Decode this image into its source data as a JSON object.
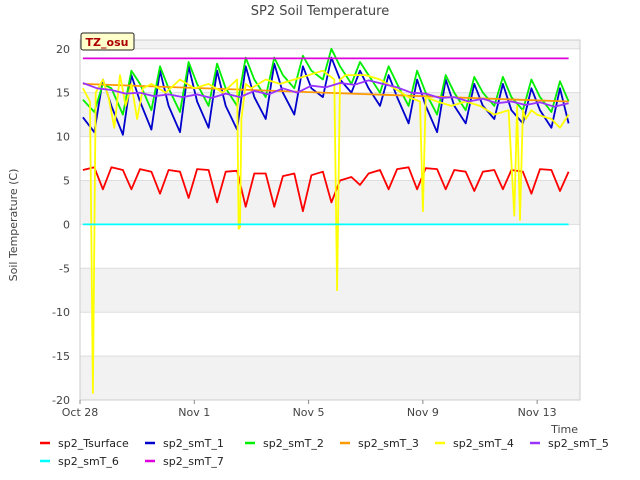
{
  "chart_data": {
    "type": "line",
    "title": "SP2 Soil Temperature",
    "xlabel": "Time",
    "ylabel": "Soil Temperature (C)",
    "badge": "TZ_osu",
    "ylim": [
      -20,
      21
    ],
    "xlim_days": [
      0,
      17.5
    ],
    "x_tick_labels": [
      "Oct 28",
      "Nov 1",
      "Nov 5",
      "Nov 9",
      "Nov 13"
    ],
    "x_tick_days": [
      0,
      4,
      8,
      12,
      16
    ],
    "y_ticks": [
      20,
      15,
      10,
      5,
      0,
      -5,
      -10,
      -15,
      -20
    ],
    "grid": true,
    "legend_position": "bottom",
    "x_days_note": "Day offsets from Oct 28",
    "series": [
      {
        "name": "sp2_Tsurface",
        "color": "#ff0000",
        "x": [
          0.1,
          0.5,
          0.8,
          1.1,
          1.5,
          1.8,
          2.1,
          2.5,
          2.8,
          3.1,
          3.5,
          3.8,
          4.1,
          4.5,
          4.8,
          5.1,
          5.5,
          5.8,
          6.1,
          6.5,
          6.8,
          7.1,
          7.5,
          7.8,
          8.1,
          8.5,
          8.8,
          9.1,
          9.5,
          9.8,
          10.1,
          10.5,
          10.8,
          11.1,
          11.5,
          11.8,
          12.1,
          12.5,
          12.8,
          13.1,
          13.5,
          13.8,
          14.1,
          14.5,
          14.8,
          15.1,
          15.5,
          15.8,
          16.1,
          16.5,
          16.8,
          17.1
        ],
        "y": [
          6.2,
          6.5,
          4.0,
          6.5,
          6.2,
          4.0,
          6.3,
          6.0,
          3.5,
          6.2,
          6.0,
          3.0,
          6.3,
          6.2,
          2.5,
          6.0,
          6.1,
          2.0,
          5.8,
          5.8,
          2.0,
          5.5,
          5.8,
          1.5,
          5.6,
          6.0,
          2.5,
          5.0,
          5.4,
          4.5,
          5.8,
          6.2,
          4.0,
          6.3,
          6.5,
          4.0,
          6.4,
          6.3,
          4.0,
          6.2,
          6.0,
          3.8,
          6.0,
          6.2,
          4.0,
          6.2,
          6.0,
          3.5,
          6.3,
          6.2,
          3.8,
          6.0
        ]
      },
      {
        "name": "sp2_smT_1",
        "color": "#0000cc",
        "x": [
          0.1,
          0.5,
          0.8,
          1.1,
          1.5,
          1.8,
          2.1,
          2.5,
          2.8,
          3.1,
          3.5,
          3.8,
          4.1,
          4.5,
          4.8,
          5.1,
          5.5,
          5.8,
          6.1,
          6.5,
          6.8,
          7.1,
          7.5,
          7.8,
          8.1,
          8.5,
          8.8,
          9.1,
          9.5,
          9.8,
          10.1,
          10.5,
          10.8,
          11.1,
          11.5,
          11.8,
          12.1,
          12.5,
          12.8,
          13.1,
          13.5,
          13.8,
          14.1,
          14.5,
          14.8,
          15.1,
          15.5,
          15.8,
          16.1,
          16.5,
          16.8,
          17.1
        ],
        "y": [
          12.2,
          10.5,
          16.5,
          13.5,
          10.2,
          17.0,
          14.0,
          10.8,
          17.5,
          13.5,
          10.5,
          18.0,
          14.0,
          11.0,
          17.5,
          13.5,
          10.8,
          18.0,
          14.5,
          12.0,
          18.3,
          15.0,
          12.5,
          18.0,
          15.5,
          14.5,
          19.0,
          16.5,
          15.0,
          17.5,
          15.5,
          13.5,
          17.0,
          14.5,
          11.5,
          16.5,
          13.5,
          10.5,
          16.5,
          13.5,
          11.5,
          16.0,
          13.5,
          12.0,
          16.0,
          13.0,
          11.5,
          15.5,
          13.0,
          11.0,
          15.5,
          11.5
        ]
      },
      {
        "name": "sp2_smT_2",
        "color": "#00ee00",
        "x": [
          0.1,
          0.5,
          0.8,
          1.1,
          1.5,
          1.8,
          2.1,
          2.5,
          2.8,
          3.1,
          3.5,
          3.8,
          4.1,
          4.5,
          4.8,
          5.1,
          5.5,
          5.8,
          6.1,
          6.5,
          6.8,
          7.1,
          7.5,
          7.8,
          8.1,
          8.5,
          8.8,
          9.1,
          9.5,
          9.8,
          10.1,
          10.5,
          10.8,
          11.1,
          11.5,
          11.8,
          12.1,
          12.5,
          12.8,
          13.1,
          13.5,
          13.8,
          14.1,
          14.5,
          14.8,
          15.1,
          15.5,
          15.8,
          16.1,
          16.5,
          16.8,
          17.1
        ],
        "y": [
          14.2,
          12.8,
          16.0,
          15.5,
          12.5,
          17.5,
          16.0,
          13.0,
          18.0,
          15.5,
          12.8,
          18.5,
          16.0,
          13.5,
          18.3,
          15.5,
          13.5,
          19.0,
          16.5,
          14.5,
          19.0,
          17.0,
          15.5,
          19.2,
          17.5,
          16.5,
          20.0,
          18.0,
          16.0,
          18.5,
          17.0,
          15.0,
          18.0,
          16.0,
          13.5,
          17.5,
          15.0,
          12.5,
          17.0,
          15.0,
          13.0,
          16.8,
          15.0,
          13.5,
          16.8,
          14.5,
          13.0,
          16.5,
          14.5,
          12.8,
          16.3,
          14.0
        ]
      },
      {
        "name": "sp2_smT_3",
        "color": "#ff9900",
        "x": [
          0.1,
          17.1
        ],
        "y": [
          16.0,
          14.0
        ]
      },
      {
        "name": "sp2_smT_4",
        "color": "#ffff00",
        "x": [
          0.1,
          0.35,
          0.45,
          0.55,
          0.8,
          1.0,
          1.2,
          1.4,
          1.6,
          1.8,
          2.0,
          2.2,
          2.5,
          3.0,
          3.5,
          4.0,
          4.5,
          5.0,
          5.5,
          5.55,
          5.6,
          5.65,
          5.8,
          6.0,
          6.5,
          7.0,
          7.5,
          8.0,
          8.5,
          8.9,
          9.0,
          9.1,
          9.3,
          9.5,
          10.0,
          10.5,
          11.0,
          11.5,
          11.9,
          12.0,
          12.1,
          12.5,
          13.0,
          13.5,
          14.0,
          14.5,
          15.0,
          15.2,
          15.3,
          15.4,
          15.5,
          15.6,
          15.8,
          16.0,
          16.5,
          16.8,
          17.1
        ],
        "y": [
          15.5,
          14.0,
          -19.2,
          15.0,
          16.5,
          14.5,
          11.0,
          17.0,
          13.5,
          16.0,
          12.0,
          15.5,
          16.0,
          15.0,
          16.5,
          15.5,
          16.0,
          15.0,
          16.5,
          -0.5,
          -0.3,
          12.0,
          16.0,
          15.5,
          16.5,
          16.0,
          16.5,
          17.0,
          17.5,
          16.5,
          -7.5,
          16.5,
          17.0,
          17.0,
          17.0,
          16.5,
          15.5,
          14.5,
          14.0,
          1.5,
          14.5,
          14.0,
          13.5,
          14.0,
          13.5,
          12.5,
          13.0,
          1.0,
          13.5,
          0.5,
          13.0,
          12.0,
          13.0,
          12.5,
          12.0,
          11.0,
          12.5
        ]
      },
      {
        "name": "sp2_smT_5",
        "color": "#9933ff",
        "x": [
          0.1,
          0.6,
          1.1,
          1.6,
          2.1,
          2.6,
          3.1,
          3.6,
          4.1,
          4.6,
          5.1,
          5.6,
          6.1,
          6.6,
          7.1,
          7.6,
          8.1,
          8.6,
          9.1,
          9.6,
          10.1,
          10.6,
          11.1,
          11.6,
          12.1,
          12.6,
          13.1,
          13.6,
          14.1,
          14.6,
          15.1,
          15.6,
          16.1,
          16.6,
          17.1
        ],
        "y": [
          16.1,
          15.5,
          15.3,
          14.9,
          15.0,
          14.6,
          14.8,
          14.5,
          14.8,
          14.4,
          14.9,
          14.5,
          15.2,
          14.8,
          15.5,
          15.0,
          15.8,
          15.6,
          16.1,
          15.9,
          16.4,
          16.0,
          15.6,
          15.0,
          14.9,
          14.4,
          14.5,
          14.0,
          14.3,
          13.8,
          14.0,
          13.6,
          13.9,
          13.4,
          13.8
        ]
      },
      {
        "name": "sp2_smT_6",
        "color": "#00ffff",
        "x": [
          0.1,
          17.1
        ],
        "y": [
          0,
          0
        ]
      },
      {
        "name": "sp2_smT_7",
        "color": "#dd00dd",
        "x": [
          0.1,
          17.1
        ],
        "y": [
          18.9,
          18.9
        ]
      }
    ]
  }
}
